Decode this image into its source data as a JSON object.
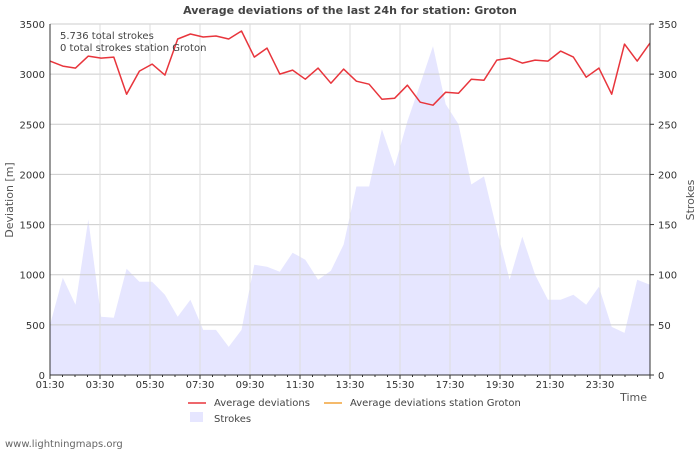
{
  "chart_data": {
    "type": "line",
    "title": "Average deviations of the last 24h for station: Groton",
    "ylabel_left": "Deviation  [m]",
    "ylabel_right": "Strokes",
    "xlabel": "Time",
    "ylim_left": [
      0,
      3500
    ],
    "ylim_right": [
      0,
      350
    ],
    "y_ticks_left": [
      "0",
      "500",
      "1000",
      "1500",
      "2000",
      "2500",
      "3000",
      "3500"
    ],
    "y_ticks_right": [
      "0",
      "50",
      "100",
      "150",
      "200",
      "250",
      "300",
      "350"
    ],
    "x_tick_labels": [
      "01:30",
      "03:30",
      "05:30",
      "07:30",
      "09:30",
      "11:30",
      "13:30",
      "15:30",
      "17:30",
      "19:30",
      "21:30",
      "23:30"
    ],
    "grid": true,
    "info_lines": [
      "5.736 total strokes",
      "0 total strokes station Groton"
    ],
    "series": [
      {
        "name": "Average deviations",
        "axis": "left",
        "color": "#e8353c",
        "values": [
          3130,
          3080,
          3060,
          3180,
          3160,
          3170,
          2800,
          3030,
          3100,
          2990,
          3350,
          3400,
          3370,
          3380,
          3350,
          3430,
          3170,
          3260,
          3000,
          3040,
          2950,
          3060,
          2910,
          3050,
          2930,
          2900,
          2750,
          2760,
          2890,
          2720,
          2690,
          2820,
          2810,
          2950,
          2940,
          3140,
          3160,
          3110,
          3140,
          3130,
          3230,
          3170,
          2970,
          3060,
          2800,
          3300,
          3130,
          3310
        ]
      },
      {
        "name": "Average deviations station Groton",
        "axis": "left",
        "color": "#f2a33a",
        "values": []
      },
      {
        "name": "Strokes",
        "axis": "right",
        "color": "#e6e6ff",
        "values": [
          50,
          97,
          70,
          155,
          58,
          57,
          106,
          93,
          93,
          80,
          58,
          75,
          45,
          45,
          28,
          45,
          110,
          108,
          103,
          122,
          115,
          95,
          104,
          130,
          188,
          188,
          245,
          208,
          253,
          290,
          328,
          270,
          250,
          190,
          198,
          145,
          95,
          138,
          100,
          75,
          75,
          80,
          70,
          88,
          48,
          42,
          95,
          90
        ]
      }
    ],
    "legend": [
      "Average deviations",
      "Average deviations station Groton",
      "Strokes"
    ]
  },
  "footer": "www.lightningmaps.org"
}
